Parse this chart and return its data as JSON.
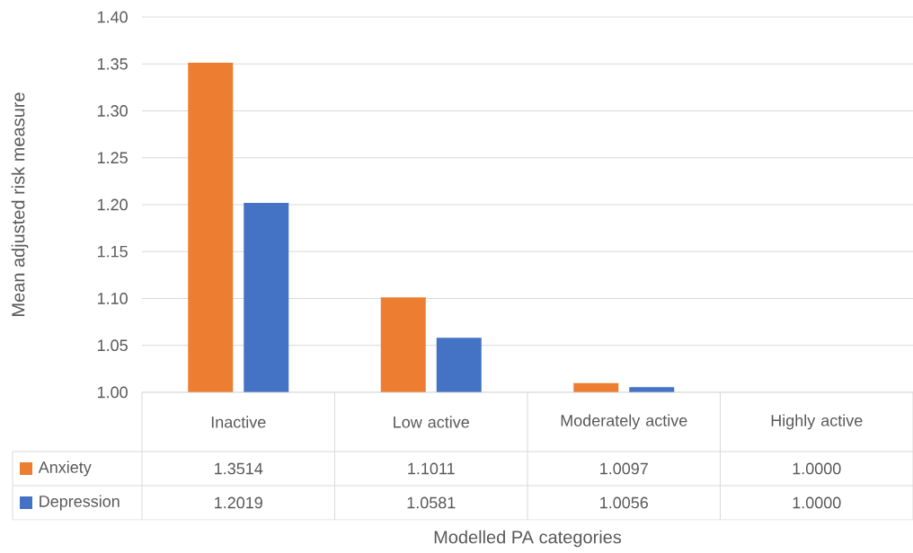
{
  "chart_data": {
    "type": "bar",
    "annotations": [
      "Modelled PA categories"
    ],
    "ylabel": "Mean adjusted risk measure",
    "categories": [
      "Inactive",
      "Low active",
      "Moderately active",
      "Highly active"
    ],
    "series": [
      {
        "name": "Anxiety",
        "color": "#ed7d31",
        "values": [
          1.3514,
          1.1011,
          1.0097,
          1.0
        ],
        "value_labels": [
          "1.3514",
          "1.1011",
          "1.0097",
          "1.0000"
        ]
      },
      {
        "name": "Depression",
        "color": "#4472c4",
        "values": [
          1.2019,
          1.0581,
          1.0056,
          1.0
        ],
        "value_labels": [
          "1.2019",
          "1.0581",
          "1.0056",
          "1.0000"
        ]
      }
    ],
    "ylim": [
      1.0,
      1.4
    ],
    "yticks": [
      {
        "value": 1.0,
        "label": "1.00"
      },
      {
        "value": 1.05,
        "label": "1.05"
      },
      {
        "value": 1.1,
        "label": "1.10"
      },
      {
        "value": 1.15,
        "label": "1.15"
      },
      {
        "value": 1.2,
        "label": "1.20"
      },
      {
        "value": 1.25,
        "label": "1.25"
      },
      {
        "value": 1.3,
        "label": "1.30"
      },
      {
        "value": 1.35,
        "label": "1.35"
      },
      {
        "value": 1.4,
        "label": "1.40"
      }
    ],
    "grid": "y",
    "legend": "bottom"
  }
}
